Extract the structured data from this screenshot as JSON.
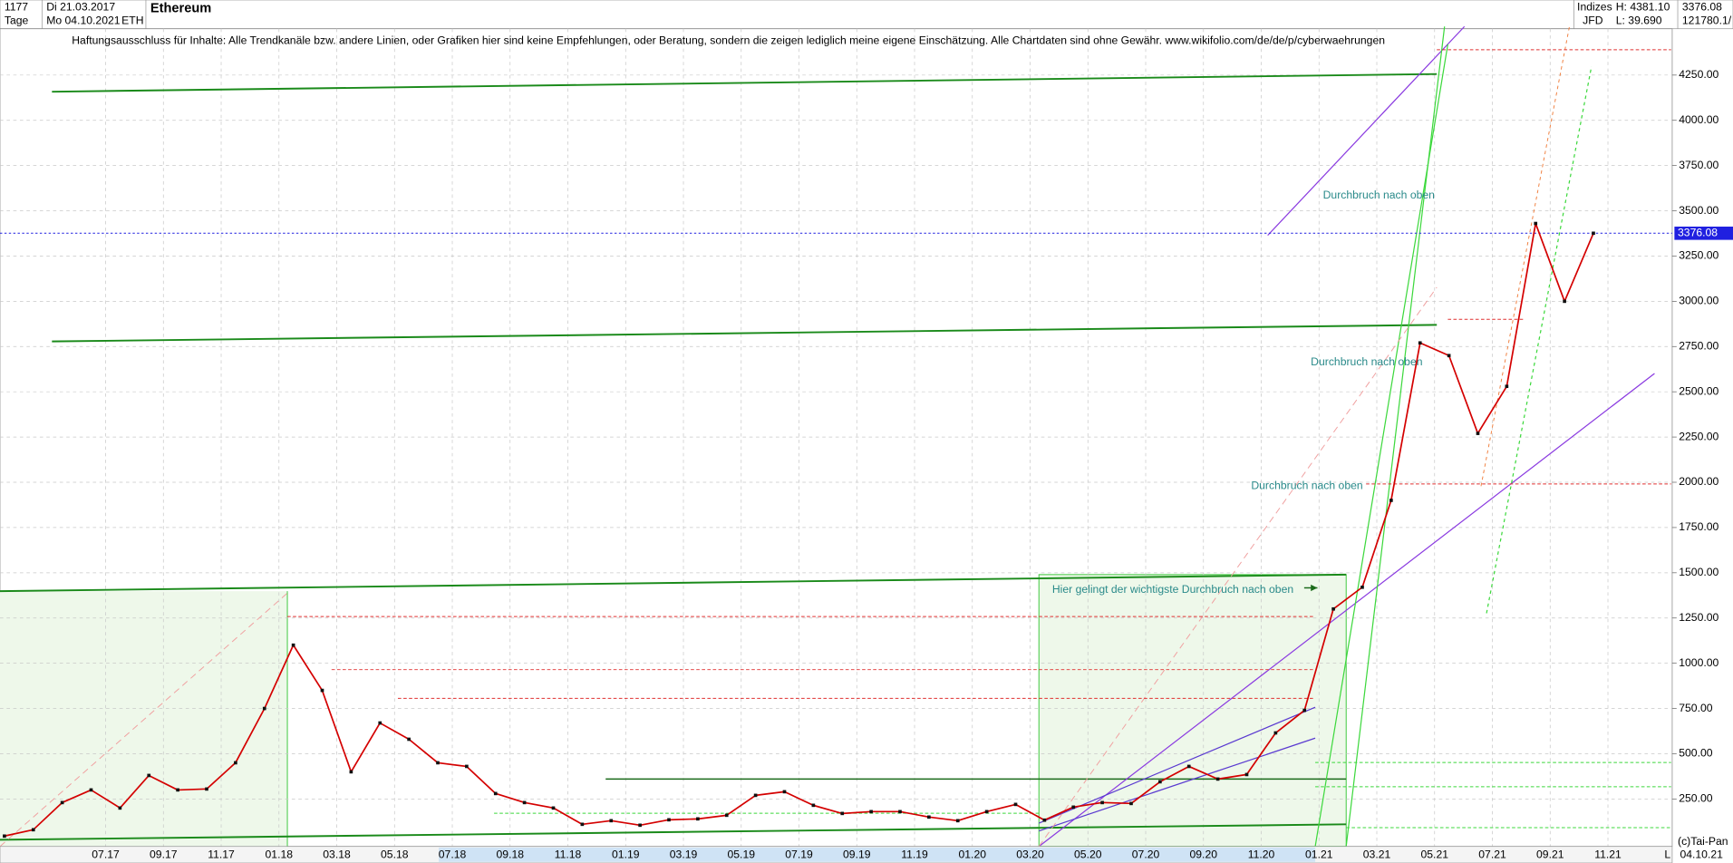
{
  "chart_data": {
    "type": "line",
    "header": {
      "count": "1177",
      "start": "Di 21.03.2017",
      "period": "Tage",
      "end": "Mo 04.10.2021",
      "symbol": "ETH",
      "name": "Ethereum",
      "group": "Indizes",
      "source": "JFD",
      "high": "H: 4381.10",
      "low": "L: 39.690",
      "extra": "121780.1/"
    },
    "title": "Haftungsausschluss für Inhalte: Alle Trendkanäle bzw. andere Linien, oder Grafiken hier sind keine Empfehlungen, oder Beratung, sondern die zeigen lediglich meine eigene Einschätzung. Alle Chartdaten sind ohne Gewähr.  www.wikifolio.com/de/de/p/cyberwaehrungen",
    "annotations": [
      "Durchbruch nach oben",
      "Durchbruch nach oben",
      "Durchbruch nach oben",
      "Hier gelingt der wichtigste Durchbruch nach oben"
    ],
    "footer": {
      "copyright": "(c)Tai-Pan",
      "date": "04.10.21",
      "scale": "L"
    },
    "last_value": 3376.08,
    "color": "#d40000",
    "grid": true,
    "categories": [
      null,
      null,
      null,
      null,
      "07.17",
      null,
      "09.17",
      null,
      "11.17",
      null,
      "01.18",
      null,
      "03.18",
      null,
      "05.18",
      null,
      "07.18",
      null,
      "09.18",
      null,
      "11.18",
      null,
      "01.19",
      null,
      "03.19",
      null,
      "05.19",
      null,
      "07.19",
      null,
      "09.19",
      null,
      "11.19",
      null,
      "01.20",
      null,
      "03.20",
      null,
      "05.20",
      null,
      "07.20",
      null,
      "09.20",
      null,
      "11.20",
      null,
      "01.21",
      null,
      "03.21",
      null,
      "05.21",
      null,
      "07.21",
      null,
      "09.21",
      null,
      "11.21"
    ],
    "values": [
      45,
      80,
      230,
      300,
      200,
      380,
      300,
      305,
      450,
      750,
      1100,
      850,
      400,
      670,
      580,
      450,
      430,
      280,
      230,
      200,
      110,
      130,
      105,
      135,
      140,
      160,
      270,
      290,
      215,
      170,
      180,
      180,
      150,
      130,
      180,
      220,
      133,
      205,
      230,
      225,
      345,
      430,
      360,
      385,
      615,
      740,
      1300,
      1420,
      1900,
      2770,
      2700,
      2270,
      2530,
      3430,
      3000,
      3376,
      null
    ],
    "ylim": [
      0,
      4500
    ],
    "yticks": [
      {
        "value": 250,
        "label": "250.00"
      },
      {
        "value": 500,
        "label": "500.00"
      },
      {
        "value": 750,
        "label": "750.00"
      },
      {
        "value": 1000,
        "label": "1000.00"
      },
      {
        "value": 1250,
        "label": "1250.00"
      },
      {
        "value": 1500,
        "label": "1500.00"
      },
      {
        "value": 1750,
        "label": "1750.00"
      },
      {
        "value": 2000,
        "label": "2000.00"
      },
      {
        "value": 2250,
        "label": "2250.00"
      },
      {
        "value": 2500,
        "label": "2500.00"
      },
      {
        "value": 2750,
        "label": "2750.00"
      },
      {
        "value": 3000,
        "label": "3000.00"
      },
      {
        "value": 3250,
        "label": "3250.00"
      },
      {
        "value": 3500,
        "label": "3500.00"
      },
      {
        "value": 3750,
        "label": "3750.00"
      },
      {
        "value": 4000,
        "label": "4000.00"
      },
      {
        "value": 4250,
        "label": "4250.00"
      }
    ]
  }
}
